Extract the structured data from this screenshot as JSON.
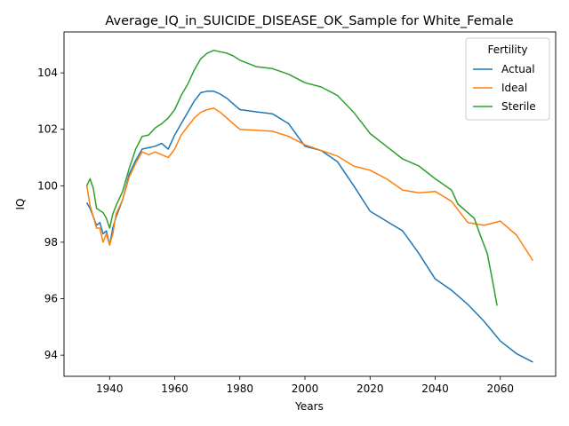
{
  "chart_data": {
    "type": "line",
    "title": "Average_IQ_in_SUICIDE_DISEASE_OK_Sample for White_Female",
    "xlabel": "Years",
    "ylabel": "IQ",
    "xlim": [
      1926,
      2077
    ],
    "ylim": [
      93.25,
      105.45
    ],
    "xticks": [
      1940,
      1960,
      1980,
      2000,
      2020,
      2040,
      2060
    ],
    "yticks": [
      94,
      96,
      98,
      100,
      102,
      104
    ],
    "grid": false,
    "legend": {
      "title": "Fertility",
      "placement": "top-right"
    },
    "series": [
      {
        "name": "Actual",
        "color": "#1f77b4",
        "x": [
          1933,
          1934,
          1936,
          1937,
          1938,
          1939,
          1940,
          1941,
          1942,
          1944,
          1946,
          1948,
          1950,
          1952,
          1954,
          1956,
          1958,
          1960,
          1962,
          1964,
          1966,
          1968,
          1970,
          1972,
          1974,
          1976,
          1978,
          1980,
          1985,
          1990,
          1995,
          2000,
          2005,
          2010,
          2015,
          2020,
          2025,
          2030,
          2035,
          2040,
          2045,
          2050,
          2055,
          2060,
          2065,
          2070
        ],
        "y": [
          99.4,
          99.2,
          98.6,
          98.7,
          98.3,
          98.4,
          97.9,
          98.5,
          98.9,
          99.5,
          100.4,
          100.9,
          101.3,
          101.35,
          101.4,
          101.5,
          101.3,
          101.8,
          102.2,
          102.6,
          103.0,
          103.3,
          103.35,
          103.35,
          103.25,
          103.1,
          102.9,
          102.7,
          102.62,
          102.55,
          102.2,
          101.4,
          101.25,
          100.85,
          100.0,
          99.1,
          98.75,
          98.4,
          97.6,
          96.7,
          96.3,
          95.8,
          95.2,
          94.5,
          94.05,
          93.75
        ]
      },
      {
        "name": "Ideal",
        "color": "#ff7f0e",
        "x": [
          1933,
          1934,
          1936,
          1937,
          1938,
          1939,
          1940,
          1941,
          1942,
          1944,
          1946,
          1948,
          1950,
          1952,
          1954,
          1956,
          1958,
          1960,
          1962,
          1964,
          1966,
          1968,
          1970,
          1972,
          1974,
          1976,
          1978,
          1980,
          1985,
          1990,
          1995,
          2000,
          2005,
          2010,
          2015,
          2020,
          2025,
          2030,
          2035,
          2040,
          2045,
          2050,
          2055,
          2060,
          2065,
          2070
        ],
        "y": [
          100.0,
          99.3,
          98.5,
          98.5,
          98.0,
          98.3,
          97.9,
          98.3,
          99.0,
          99.5,
          100.3,
          100.8,
          101.2,
          101.1,
          101.2,
          101.1,
          101.0,
          101.3,
          101.8,
          102.1,
          102.4,
          102.6,
          102.7,
          102.75,
          102.6,
          102.4,
          102.2,
          102.0,
          101.97,
          101.93,
          101.75,
          101.45,
          101.25,
          101.05,
          100.7,
          100.55,
          100.25,
          99.85,
          99.75,
          99.8,
          99.45,
          98.7,
          98.6,
          98.75,
          98.25,
          97.35
        ]
      },
      {
        "name": "Sterile",
        "color": "#2ca02c",
        "x": [
          1933,
          1934,
          1935,
          1936,
          1938,
          1939,
          1940,
          1941,
          1942,
          1944,
          1946,
          1948,
          1950,
          1952,
          1954,
          1956,
          1958,
          1960,
          1962,
          1964,
          1966,
          1968,
          1970,
          1972,
          1974,
          1976,
          1978,
          1980,
          1985,
          1990,
          1995,
          2000,
          2005,
          2010,
          2015,
          2020,
          2025,
          2030,
          2035,
          2040,
          2045,
          2047,
          2050,
          2052,
          2054,
          2056,
          2058,
          2059
        ],
        "y": [
          100.0,
          100.25,
          99.9,
          99.2,
          99.05,
          98.85,
          98.5,
          99.0,
          99.3,
          99.8,
          100.6,
          101.3,
          101.75,
          101.8,
          102.05,
          102.2,
          102.4,
          102.7,
          103.2,
          103.6,
          104.1,
          104.5,
          104.7,
          104.8,
          104.75,
          104.7,
          104.6,
          104.45,
          104.22,
          104.15,
          103.95,
          103.65,
          103.5,
          103.2,
          102.6,
          101.85,
          101.4,
          100.95,
          100.7,
          100.25,
          99.85,
          99.35,
          99.05,
          98.85,
          98.2,
          97.6,
          96.4,
          95.75
        ]
      }
    ]
  }
}
